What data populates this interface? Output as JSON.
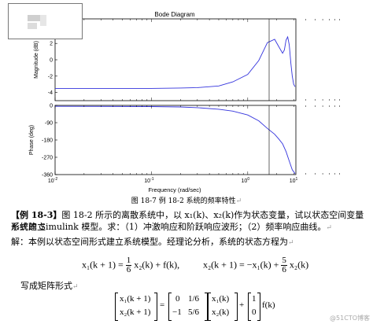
{
  "figure": {
    "title": "Bode Diagram",
    "mag_ylabel": "Magnitude (dB)",
    "phase_ylabel": "Phase (deg)",
    "xlabel": "Frequency  (rad/sec)",
    "mag_ticks": [
      "4",
      "2",
      "0",
      "-2",
      "-4"
    ],
    "phase_ticks": [
      "0",
      "-90",
      "-180",
      "-270",
      "-360"
    ],
    "x_tick_labels": [
      {
        "base": "10",
        "exp": "-2"
      },
      {
        "base": "10",
        "exp": "-1"
      },
      {
        "base": "10",
        "exp": "0"
      },
      {
        "base": "10",
        "exp": "1"
      }
    ],
    "line_color": "#3333dd",
    "caption": "图 18-7   例 18-2 系统的频率特性",
    "caption_mark": "↵"
  },
  "chart_data": [
    {
      "type": "line",
      "title": "Bode Diagram",
      "ylabel": "Magnitude (dB)",
      "xscale": "log",
      "xlim": [
        0.01,
        3.16
      ],
      "ylim": [
        -5,
        5
      ],
      "series": [
        {
          "x": [
            0.01,
            0.1,
            0.2,
            0.3,
            0.5,
            0.7,
            1.0,
            1.3,
            1.6,
            1.9,
            2.1,
            2.3,
            2.4,
            2.5,
            2.6,
            2.7,
            2.8,
            2.9,
            3.0,
            3.1
          ],
          "y": [
            -3.5,
            -3.5,
            -3.45,
            -3.4,
            -3.2,
            -2.7,
            -1.8,
            -0.1,
            2.1,
            2.5,
            1.6,
            0.8,
            1.2,
            2.4,
            2.8,
            1.8,
            -0.4,
            -2.0,
            -3.0,
            -3.3
          ]
        }
      ]
    },
    {
      "type": "line",
      "ylabel": "Phase (deg)",
      "xlabel": "Frequency  (rad/sec)",
      "xscale": "log",
      "xlim": [
        0.01,
        3.16
      ],
      "ylim": [
        -360,
        0
      ],
      "series": [
        {
          "x": [
            0.01,
            0.1,
            0.2,
            0.3,
            0.5,
            0.7,
            1.0,
            1.3,
            1.6,
            1.9,
            2.1,
            2.3,
            2.5,
            2.7,
            2.9,
            3.1
          ],
          "y": [
            -5,
            -6,
            -8,
            -12,
            -20,
            -30,
            -50,
            -80,
            -120,
            -150,
            -175,
            -200,
            -240,
            -290,
            -335,
            -355
          ]
        }
      ]
    }
  ],
  "example": {
    "label": "【例 18-3】",
    "line1": "图 18-2 所示的离散系统中，以 x₁(k)、x₂(k)作为状态变量，试以状态空间变量形式建立",
    "line2": "系统的 Simulink 模型。求：（1）冲激响应和阶跃响应波形；（2）频率响应曲线。",
    "line3": "解：本例以状态空间形式建立系统模型。经理论分析，系统的状态方程为",
    "ret": "↵"
  },
  "equations": {
    "eq1_lhs": "x₁(k + 1) =",
    "eq1_frac_num": "1",
    "eq1_frac_den": "6",
    "eq1_rhs": "x₂(k) + f(k),",
    "eq2_lhs": "x₂(k + 1) = −x₁(k) +",
    "eq2_frac_num": "5",
    "eq2_frac_den": "6",
    "eq2_rhs": "x₂(k)",
    "matrix_intro": "写成矩阵形式",
    "m_lhs": [
      "x₁(k + 1)",
      "x₂(k + 1)"
    ],
    "m_a": [
      "0",
      "1/6",
      "−1",
      "5/6"
    ],
    "m_x": [
      "x₁(k)",
      "x₂(k)"
    ],
    "m_b": [
      "1",
      "0"
    ],
    "plus": "+",
    "fk": "f(k)",
    "eq_sign": "="
  },
  "watermark": "@51CTO博客"
}
